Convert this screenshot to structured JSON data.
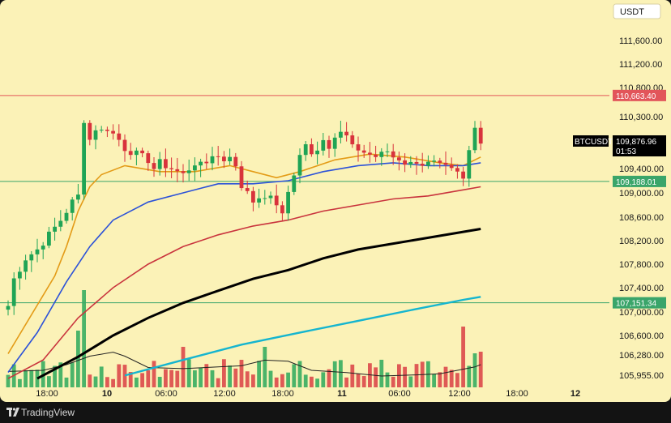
{
  "currency_button": "USDT",
  "brand": {
    "name": "TradingView",
    "icon": "tradingview-logo-icon"
  },
  "colors": {
    "background": "#fbf2b7",
    "up": "#1fa455",
    "down": "#d8333c",
    "ma_orange": "#e39b17",
    "ma_blue": "#2c52d8",
    "ma_red": "#c9343d",
    "ma_black": "#000000",
    "ma_cyan": "#15b5cf",
    "level_red": "#e2555a",
    "level_green": "#3aa56a"
  },
  "chart_data": {
    "type": "candlestick",
    "symbol": "BTCUSDT",
    "last_price": "109,876.96",
    "countdown": "01:53",
    "y_ticks": [
      "111,600.00",
      "111,200.00",
      "110,800.00",
      "110,300.00",
      "109,400.00",
      "109,000.00",
      "108,600.00",
      "108,200.00",
      "107,800.00",
      "107,400.00",
      "107,000.00",
      "106,600.00",
      "106,280.00",
      "105,955.00"
    ],
    "x_ticks": [
      {
        "label": "18:00",
        "bold": false
      },
      {
        "label": "10",
        "bold": true
      },
      {
        "label": "06:00",
        "bold": false
      },
      {
        "label": "12:00",
        "bold": false
      },
      {
        "label": "18:00",
        "bold": false
      },
      {
        "label": "11",
        "bold": true
      },
      {
        "label": "06:00",
        "bold": false
      },
      {
        "label": "12:00",
        "bold": false
      },
      {
        "label": "18:00",
        "bold": false
      },
      {
        "label": "12",
        "bold": true
      }
    ],
    "levels": [
      {
        "value": 110663.4,
        "label": "110,663.40",
        "color": "#e2555a"
      },
      {
        "value": 109188.01,
        "label": "109,188.01",
        "color": "#3aa56a"
      },
      {
        "value": 107151.34,
        "label": "107,151.34",
        "color": "#3aa56a"
      }
    ],
    "price_points": [
      [
        0,
        107100
      ],
      [
        1,
        107550
      ],
      [
        3,
        107900
      ],
      [
        5,
        108050
      ],
      [
        7,
        108300
      ],
      [
        9,
        108550
      ],
      [
        10,
        108700
      ],
      [
        11,
        108850
      ],
      [
        12,
        108950
      ],
      [
        12.5,
        109300
      ],
      [
        13,
        110250
      ],
      [
        14,
        109900
      ],
      [
        15,
        110100
      ],
      [
        16,
        110050
      ],
      [
        17,
        110100
      ],
      [
        18,
        110000
      ],
      [
        19,
        109900
      ],
      [
        20,
        109750
      ],
      [
        21,
        109700
      ],
      [
        22,
        109650
      ],
      [
        23,
        109600
      ],
      [
        24,
        109550
      ],
      [
        25,
        109400
      ],
      [
        26,
        109500
      ],
      [
        27,
        109450
      ],
      [
        28,
        109400
      ],
      [
        29,
        109350
      ],
      [
        30,
        109300
      ],
      [
        31,
        109400
      ],
      [
        32,
        109500
      ],
      [
        33,
        109450
      ],
      [
        34,
        109500
      ],
      [
        35,
        109650
      ],
      [
        36,
        109600
      ],
      [
        37,
        109550
      ],
      [
        38,
        109650
      ],
      [
        39,
        109400
      ],
      [
        40,
        109100
      ],
      [
        41,
        109050
      ],
      [
        42,
        108900
      ],
      [
        43,
        108850
      ],
      [
        44,
        108950
      ],
      [
        45,
        108900
      ],
      [
        46,
        108800
      ],
      [
        47,
        108700
      ],
      [
        48,
        109000
      ],
      [
        49,
        109300
      ],
      [
        50,
        109600
      ],
      [
        51,
        109800
      ],
      [
        52,
        109700
      ],
      [
        53,
        109750
      ],
      [
        54,
        109900
      ],
      [
        55,
        109800
      ],
      [
        56,
        110000
      ],
      [
        57,
        110050
      ],
      [
        58,
        109950
      ],
      [
        59,
        109800
      ],
      [
        60,
        109650
      ],
      [
        61,
        109700
      ],
      [
        62,
        109650
      ],
      [
        63,
        109600
      ],
      [
        64,
        109700
      ],
      [
        65,
        109650
      ],
      [
        66,
        109600
      ],
      [
        67,
        109550
      ],
      [
        68,
        109500
      ],
      [
        69,
        109550
      ],
      [
        70,
        109450
      ],
      [
        71,
        109500
      ],
      [
        72,
        109550
      ],
      [
        73,
        109500
      ],
      [
        74,
        109450
      ],
      [
        75,
        109400
      ],
      [
        76,
        109350
      ],
      [
        77,
        109300
      ],
      [
        78,
        109200
      ],
      [
        79,
        109700
      ],
      [
        80,
        110100
      ],
      [
        81,
        109900
      ]
    ],
    "ma_series": [
      {
        "color": "#e39b17",
        "width": 1.6,
        "points": [
          [
            0,
            106300
          ],
          [
            8,
            107600
          ],
          [
            10,
            108100
          ],
          [
            12,
            108700
          ],
          [
            14,
            109100
          ],
          [
            16,
            109300
          ],
          [
            20,
            109450
          ],
          [
            26,
            109350
          ],
          [
            32,
            109350
          ],
          [
            38,
            109450
          ],
          [
            42,
            109350
          ],
          [
            46,
            109250
          ],
          [
            50,
            109350
          ],
          [
            56,
            109550
          ],
          [
            62,
            109650
          ],
          [
            68,
            109600
          ],
          [
            74,
            109500
          ],
          [
            78,
            109450
          ],
          [
            81,
            109600
          ]
        ]
      },
      {
        "color": "#2c52d8",
        "width": 1.6,
        "points": [
          [
            0,
            106000
          ],
          [
            5,
            106650
          ],
          [
            10,
            107500
          ],
          [
            14,
            108100
          ],
          [
            18,
            108550
          ],
          [
            24,
            108850
          ],
          [
            30,
            109000
          ],
          [
            36,
            109150
          ],
          [
            42,
            109150
          ],
          [
            48,
            109200
          ],
          [
            54,
            109350
          ],
          [
            60,
            109450
          ],
          [
            66,
            109500
          ],
          [
            72,
            109450
          ],
          [
            78,
            109450
          ],
          [
            81,
            109500
          ]
        ]
      },
      {
        "color": "#c9343d",
        "width": 1.6,
        "points": [
          [
            0,
            105900
          ],
          [
            6,
            106200
          ],
          [
            12,
            106900
          ],
          [
            18,
            107400
          ],
          [
            24,
            107800
          ],
          [
            30,
            108100
          ],
          [
            36,
            108300
          ],
          [
            42,
            108450
          ],
          [
            48,
            108550
          ],
          [
            54,
            108700
          ],
          [
            60,
            108800
          ],
          [
            66,
            108900
          ],
          [
            72,
            108950
          ],
          [
            78,
            109050
          ],
          [
            81,
            109100
          ]
        ]
      },
      {
        "color": "#000000",
        "width": 3,
        "points": [
          [
            5,
            105900
          ],
          [
            12,
            106250
          ],
          [
            18,
            106600
          ],
          [
            24,
            106900
          ],
          [
            30,
            107150
          ],
          [
            36,
            107350
          ],
          [
            42,
            107550
          ],
          [
            48,
            107700
          ],
          [
            54,
            107900
          ],
          [
            60,
            108050
          ],
          [
            66,
            108150
          ],
          [
            72,
            108250
          ],
          [
            78,
            108350
          ],
          [
            81,
            108400
          ]
        ]
      },
      {
        "color": "#15b5cf",
        "width": 2.4,
        "points": [
          [
            20,
            105950
          ],
          [
            30,
            106200
          ],
          [
            40,
            106450
          ],
          [
            50,
            106650
          ],
          [
            60,
            106850
          ],
          [
            70,
            107050
          ],
          [
            78,
            107200
          ],
          [
            81,
            107250
          ]
        ]
      }
    ],
    "volume_ma": [
      [
        0,
        0.28
      ],
      [
        6,
        0.3
      ],
      [
        10,
        0.4
      ],
      [
        14,
        0.55
      ],
      [
        18,
        0.62
      ],
      [
        20,
        0.55
      ],
      [
        24,
        0.35
      ],
      [
        30,
        0.33
      ],
      [
        36,
        0.36
      ],
      [
        40,
        0.38
      ],
      [
        44,
        0.48
      ],
      [
        48,
        0.46
      ],
      [
        52,
        0.3
      ],
      [
        58,
        0.26
      ],
      [
        64,
        0.2
      ],
      [
        70,
        0.22
      ],
      [
        74,
        0.24
      ],
      [
        77,
        0.3
      ],
      [
        80,
        0.36
      ],
      [
        81,
        0.4
      ]
    ]
  }
}
